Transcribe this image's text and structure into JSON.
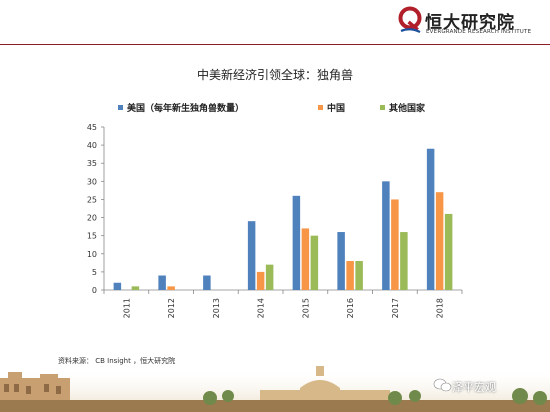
{
  "brand": {
    "name": "恒大研究院",
    "subtitle": "EVERGRANDE RESEARCH INSTITUTE",
    "color": "#b01f2a"
  },
  "page_title": "中美新经济引领全球：独角兽",
  "source": "资料来源： CB Insight ，恒大研究院",
  "watermark": "泽平宏观",
  "chart_data": {
    "type": "bar",
    "categories": [
      "2011",
      "2012",
      "2013",
      "2014",
      "2015",
      "2016",
      "2017",
      "2018"
    ],
    "series": [
      {
        "name": "美国（每年新生独角兽数量）",
        "color": "#4f81bd",
        "values": [
          2,
          4,
          4,
          19,
          26,
          16,
          30,
          39
        ]
      },
      {
        "name": "中国",
        "color": "#f79646",
        "values": [
          0,
          1,
          0,
          5,
          17,
          8,
          25,
          27
        ]
      },
      {
        "name": "其他国家",
        "color": "#9bbb59",
        "values": [
          1,
          0,
          0,
          7,
          15,
          8,
          16,
          21
        ]
      }
    ],
    "ylim": [
      0,
      45
    ],
    "yticks": [
      "0",
      "5",
      "10",
      "15",
      "20",
      "25",
      "30",
      "35",
      "40",
      "45"
    ],
    "grid": false,
    "legend": "top"
  }
}
